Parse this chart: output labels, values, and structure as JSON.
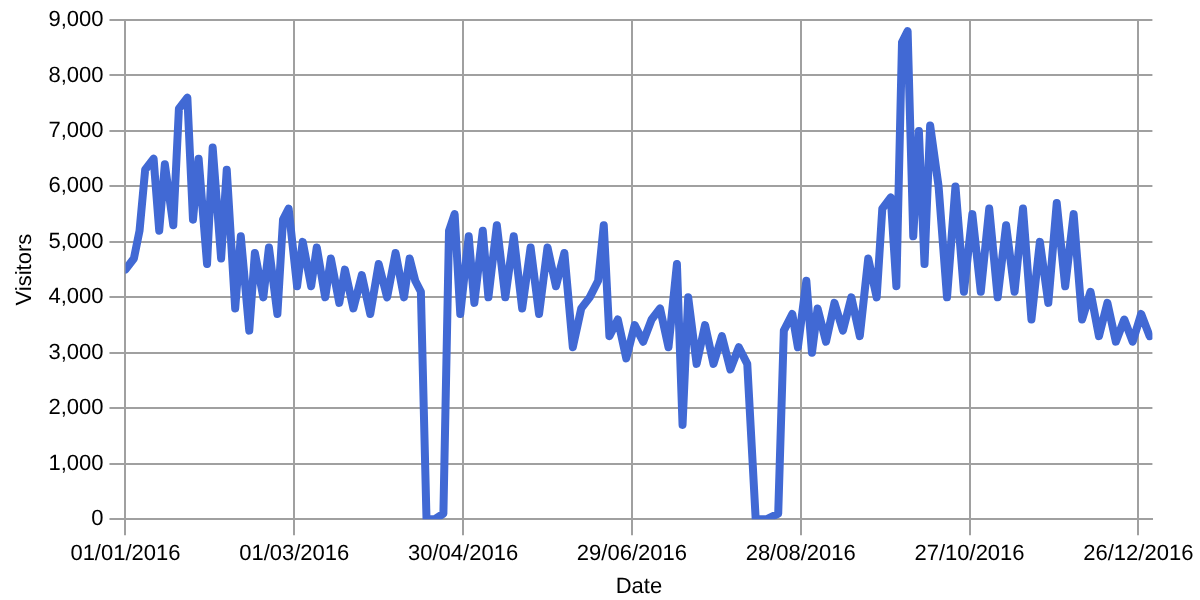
{
  "chart_data": {
    "type": "line",
    "xlabel": "Date",
    "ylabel": "Visitors",
    "grid": true,
    "legend": false,
    "marker": "none",
    "line_style": "solid",
    "xlim": [
      "2016-01-01",
      "2016-12-31"
    ],
    "xticks": [
      {
        "value": "2016-01-01",
        "label": "01/01/2016"
      },
      {
        "value": "2016-03-01",
        "label": "01/03/2016"
      },
      {
        "value": "2016-04-30",
        "label": "30/04/2016"
      },
      {
        "value": "2016-06-29",
        "label": "29/06/2016"
      },
      {
        "value": "2016-08-28",
        "label": "28/08/2016"
      },
      {
        "value": "2016-10-27",
        "label": "27/10/2016"
      },
      {
        "value": "2016-12-26",
        "label": "26/12/2016"
      }
    ],
    "ylim": [
      0,
      9000
    ],
    "yticks": [
      0,
      {
        "value": 1000,
        "label": "1,000"
      },
      {
        "value": 2000,
        "label": "2,000"
      },
      {
        "value": 3000,
        "label": "3,000"
      },
      {
        "value": 4000,
        "label": "4,000"
      },
      {
        "value": 5000,
        "label": "5,000"
      },
      {
        "value": 6000,
        "label": "6,000"
      },
      {
        "value": 7000,
        "label": "7,000"
      },
      {
        "value": 8000,
        "label": "8,000"
      },
      {
        "value": 9000,
        "label": "9,000"
      }
    ],
    "series": [
      {
        "color": "#4169d4",
        "x": [
          "2016-01-01",
          "2016-01-04",
          "2016-01-06",
          "2016-01-08",
          "2016-01-11",
          "2016-01-13",
          "2016-01-15",
          "2016-01-18",
          "2016-01-20",
          "2016-01-23",
          "2016-01-25",
          "2016-01-27",
          "2016-01-30",
          "2016-02-01",
          "2016-02-04",
          "2016-02-06",
          "2016-02-09",
          "2016-02-11",
          "2016-02-14",
          "2016-02-16",
          "2016-02-19",
          "2016-02-21",
          "2016-02-24",
          "2016-02-26",
          "2016-02-28",
          "2016-03-02",
          "2016-03-04",
          "2016-03-07",
          "2016-03-09",
          "2016-03-12",
          "2016-03-14",
          "2016-03-17",
          "2016-03-19",
          "2016-03-22",
          "2016-03-25",
          "2016-03-28",
          "2016-03-31",
          "2016-04-03",
          "2016-04-06",
          "2016-04-09",
          "2016-04-11",
          "2016-04-13",
          "2016-04-15",
          "2016-04-17",
          "2016-04-20",
          "2016-04-23",
          "2016-04-25",
          "2016-04-27",
          "2016-04-29",
          "2016-05-02",
          "2016-05-04",
          "2016-05-07",
          "2016-05-09",
          "2016-05-12",
          "2016-05-15",
          "2016-05-18",
          "2016-05-21",
          "2016-05-24",
          "2016-05-27",
          "2016-05-30",
          "2016-06-02",
          "2016-06-05",
          "2016-06-08",
          "2016-06-11",
          "2016-06-14",
          "2016-06-17",
          "2016-06-19",
          "2016-06-21",
          "2016-06-24",
          "2016-06-27",
          "2016-06-30",
          "2016-07-03",
          "2016-07-06",
          "2016-07-09",
          "2016-07-12",
          "2016-07-15",
          "2016-07-17",
          "2016-07-19",
          "2016-07-22",
          "2016-07-25",
          "2016-07-28",
          "2016-07-31",
          "2016-08-03",
          "2016-08-06",
          "2016-08-09",
          "2016-08-12",
          "2016-08-16",
          "2016-08-20",
          "2016-08-22",
          "2016-08-25",
          "2016-08-27",
          "2016-08-30",
          "2016-09-01",
          "2016-09-03",
          "2016-09-06",
          "2016-09-09",
          "2016-09-12",
          "2016-09-15",
          "2016-09-18",
          "2016-09-21",
          "2016-09-24",
          "2016-09-26",
          "2016-09-29",
          "2016-10-01",
          "2016-10-03",
          "2016-10-05",
          "2016-10-07",
          "2016-10-09",
          "2016-10-11",
          "2016-10-13",
          "2016-10-16",
          "2016-10-19",
          "2016-10-22",
          "2016-10-25",
          "2016-10-28",
          "2016-10-31",
          "2016-11-03",
          "2016-11-06",
          "2016-11-09",
          "2016-11-12",
          "2016-11-15",
          "2016-11-18",
          "2016-11-21",
          "2016-11-24",
          "2016-11-27",
          "2016-11-30",
          "2016-12-03",
          "2016-12-06",
          "2016-12-09",
          "2016-12-12",
          "2016-12-15",
          "2016-12-18",
          "2016-12-21",
          "2016-12-24",
          "2016-12-27",
          "2016-12-30"
        ],
        "values": [
          4500,
          4700,
          5200,
          6300,
          6500,
          5200,
          6400,
          5300,
          7400,
          7600,
          5400,
          6500,
          4600,
          6700,
          4700,
          6300,
          3800,
          5100,
          3400,
          4800,
          4000,
          4900,
          3700,
          5400,
          5600,
          4200,
          5000,
          4200,
          4900,
          4000,
          4700,
          3900,
          4500,
          3800,
          4400,
          3700,
          4600,
          4000,
          4800,
          4000,
          4700,
          4300,
          4100,
          0,
          0,
          100,
          5200,
          5500,
          3700,
          5100,
          3900,
          5200,
          4000,
          5300,
          4000,
          5100,
          3800,
          4900,
          3700,
          4900,
          4200,
          4800,
          3100,
          3800,
          4000,
          4300,
          5300,
          3300,
          3600,
          2900,
          3500,
          3200,
          3600,
          3800,
          3100,
          4600,
          1700,
          4000,
          2800,
          3500,
          2800,
          3300,
          2700,
          3100,
          2800,
          0,
          0,
          100,
          3400,
          3700,
          3100,
          4300,
          3000,
          3800,
          3200,
          3900,
          3400,
          4000,
          3300,
          4700,
          4000,
          5600,
          5800,
          4200,
          8600,
          8800,
          5100,
          7000,
          4600,
          7100,
          6000,
          4000,
          6000,
          4100,
          5500,
          4100,
          5600,
          4000,
          5300,
          4100,
          5600,
          3600,
          5000,
          3900,
          5700,
          4200,
          5500,
          3600,
          4100,
          3300,
          3900,
          3200,
          3600,
          3200,
          3700,
          3300
        ]
      }
    ]
  }
}
